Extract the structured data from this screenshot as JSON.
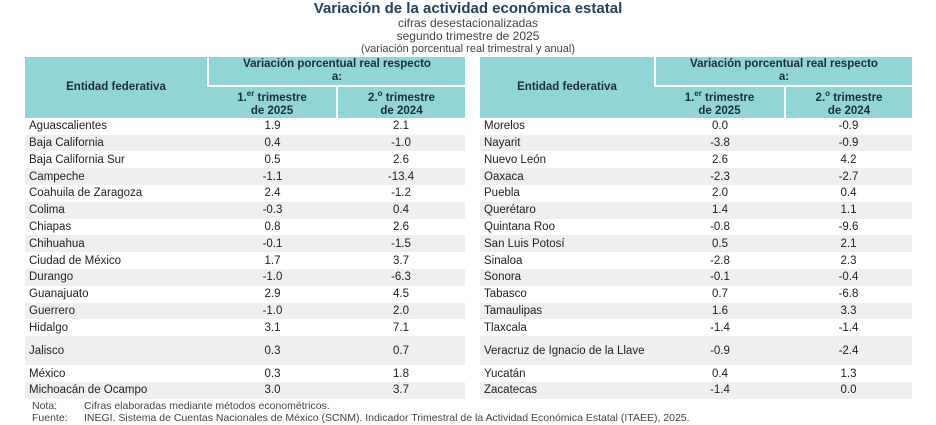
{
  "header": {
    "title": "Variación de la actividad económica estatal",
    "subtitles": [
      "cifras desestacionalizadas",
      "segundo trimestre de 2025",
      "(variación porcentual real trimestral y anual)"
    ]
  },
  "tables": [
    {
      "columns": {
        "entity": "Entidad federativa",
        "group": "Variación porcentual real respecto a:",
        "q1": {
          "ordinal": "1.",
          "sup": "er",
          "text": " trimestre",
          "year": "de 2025"
        },
        "q2": {
          "ordinal": "2.",
          "sup": "o",
          "text": " trimestre",
          "year": "de 2024"
        }
      },
      "rows": [
        [
          "Aguascalientes",
          "1.9",
          "2.1"
        ],
        [
          "Baja California",
          "0.4",
          "-1.0"
        ],
        [
          "Baja California Sur",
          "0.5",
          "2.6"
        ],
        [
          "Campeche",
          "-1.1",
          "-13.4"
        ],
        [
          "Coahuila de Zaragoza",
          "2.4",
          "-1.2"
        ],
        [
          "Colima",
          "-0.3",
          "0.4"
        ],
        [
          "Chiapas",
          "0.8",
          "2.6"
        ],
        [
          "Chihuahua",
          "-0.1",
          "-1.5"
        ],
        [
          "Ciudad de México",
          "1.7",
          "3.7"
        ],
        [
          "Durango",
          "-1.0",
          "-6.3"
        ],
        [
          "Guanajuato",
          "2.9",
          "4.5"
        ],
        [
          "Guerrero",
          "-1.0",
          "2.0"
        ],
        [
          "Hidalgo",
          "3.1",
          "7.1"
        ],
        [
          "Jalisco",
          "0.3",
          "0.7"
        ],
        [
          "México",
          "0.3",
          "1.8"
        ],
        [
          "Michoacán de Ocampo",
          "3.0",
          "3.7"
        ]
      ]
    },
    {
      "columns": {
        "entity": "Entidad federativa",
        "group": "Variación porcentual real respecto a:",
        "q1": {
          "ordinal": "1.",
          "sup": "er",
          "text": " trimestre",
          "year": "de 2025"
        },
        "q2": {
          "ordinal": "2.",
          "sup": "o",
          "text": " trimestre",
          "year": "de 2024"
        }
      },
      "rows": [
        [
          "Morelos",
          "0.0",
          "-0.9"
        ],
        [
          "Nayarit",
          "-3.8",
          "-0.9"
        ],
        [
          "Nuevo León",
          "2.6",
          "4.2"
        ],
        [
          "Oaxaca",
          "-2.3",
          "-2.7"
        ],
        [
          "Puebla",
          "2.0",
          "0.4"
        ],
        [
          "Querétaro",
          "1.4",
          "1.1"
        ],
        [
          "Quintana Roo",
          "-0.8",
          "-9.6"
        ],
        [
          "San Luis Potosí",
          "0.5",
          "2.1"
        ],
        [
          "Sinaloa",
          "-2.8",
          "2.3"
        ],
        [
          "Sonora",
          "-0.1",
          "-0.4"
        ],
        [
          "Tabasco",
          "0.7",
          "-6.8"
        ],
        [
          "Tamaulipas",
          "1.6",
          "3.3"
        ],
        [
          "Tlaxcala",
          "-1.4",
          "-1.4"
        ],
        [
          "Veracruz de Ignacio de la Llave",
          "-0.9",
          "-2.4"
        ],
        [
          "Yucatán",
          "0.4",
          "1.3"
        ],
        [
          "Zacatecas",
          "-1.4",
          "0.0"
        ]
      ]
    }
  ],
  "notes": [
    {
      "label": "Nota:",
      "text": "Cifras elaboradas mediante métodos econométricos."
    },
    {
      "label": "Fuente:",
      "text": "INEGI. Sistema de Cuentas Nacionales de México (SCNM). Indicador Trimestral de la Actividad Económica Estatal (ITAEE), 2025."
    }
  ]
}
